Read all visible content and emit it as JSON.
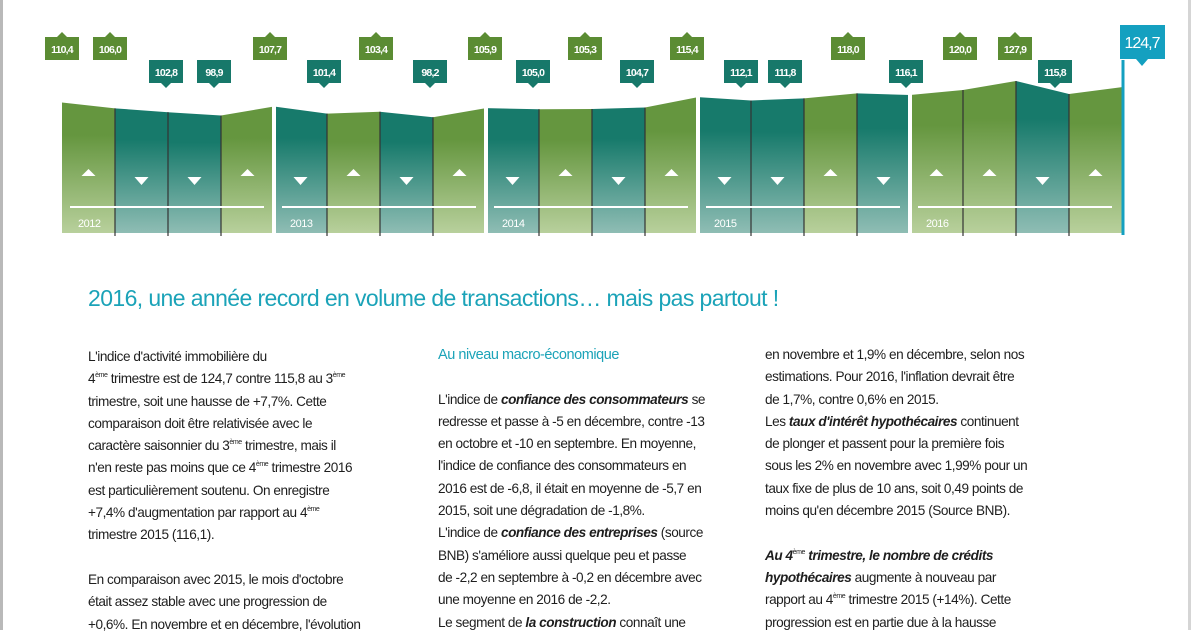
{
  "chart_data": {
    "type": "area",
    "title": "Indice d'activité immobilière",
    "years": [
      "2012",
      "2013",
      "2014",
      "2015",
      "2016"
    ],
    "labels": [
      "110,4",
      "106,0",
      "102,8",
      "98,9",
      "107,7",
      "101,4",
      "103,4",
      "98,2",
      "105,9",
      "105,0",
      "105,3",
      "104,7",
      "115,4",
      "112,1",
      "111,8",
      "118,0",
      "116,1",
      "120,0",
      "127,9",
      "115,8",
      "124,7"
    ],
    "values": [
      110.4,
      106.0,
      102.8,
      98.9,
      107.7,
      101.4,
      103.4,
      98.2,
      105.9,
      105.0,
      105.3,
      104.7,
      115.4,
      112.1,
      111.8,
      118.0,
      116.1,
      120.0,
      127.9,
      115.8,
      124.7
    ],
    "label_rows": [
      "up",
      "up",
      "low",
      "low",
      "up",
      "low",
      "up",
      "low",
      "up",
      "low",
      "up",
      "low",
      "up",
      "low",
      "low",
      "up",
      "low",
      "up",
      "up",
      "low",
      "highlight"
    ],
    "quarter_directions": [
      "up",
      "down",
      "down",
      "up",
      "down",
      "up",
      "down",
      "up",
      "down",
      "up",
      "down",
      "up",
      "down",
      "down",
      "up",
      "down",
      "up",
      "up",
      "down",
      "up"
    ],
    "colors": {
      "up": "#5b8c33",
      "down": "#17786a",
      "highlight": "#14a0c0"
    }
  },
  "article": {
    "title": "2016, une année record en volume de transactions… mais pas partout !",
    "col1": [
      [
        "L'indice d'activité immobilière du"
      ],
      [
        "4",
        {
          "s": "ème"
        },
        " trimestre est de 124,7 contre 115,8 au 3",
        {
          "s": "ème"
        }
      ],
      [
        "trimestre, soit une hausse de +7,7%. Cette"
      ],
      [
        "comparaison doit être relativisée avec le"
      ],
      [
        "caractère saisonnier du 3",
        {
          "s": "ème"
        },
        " trimestre, mais il"
      ],
      [
        "n'en reste pas moins que ce 4",
        {
          "s": "ème"
        },
        " trimestre 2016"
      ],
      [
        "est particulièrement soutenu. On enregistre"
      ],
      [
        "+7,4% d'augmentation par rapport au 4",
        {
          "s": "ème"
        }
      ],
      [
        "trimestre 2015 (116,1)."
      ],
      [],
      [
        "En comparaison avec 2015, le mois d'octobre"
      ],
      [
        "était assez stable avec une progression de"
      ],
      [
        "+0,6%. En novembre et en décembre, l'évolution"
      ]
    ],
    "col2_heading": "Au niveau macro-économique",
    "col2": [
      [],
      [
        "L'indice de ",
        {
          "b": "confiance des consommateurs"
        },
        " se"
      ],
      [
        "redresse et passe à -5 en décembre, contre -13"
      ],
      [
        "en octobre et -10 en septembre. En moyenne,"
      ],
      [
        "l'indice de confiance des consommateurs en"
      ],
      [
        "2016 est de -6,8, il était en moyenne de -5,7 en"
      ],
      [
        "2015, soit une dégradation de -1,8%."
      ],
      [
        "L'indice de ",
        {
          "b": "confiance des entreprises"
        },
        " (source"
      ],
      [
        "BNB) s'améliore aussi quelque peu et passe"
      ],
      [
        "de -2,2 en septembre à -0,2 en décembre avec"
      ],
      [
        "une moyenne en 2016 de -2,2."
      ],
      [
        "Le segment de ",
        {
          "b": "la construction"
        },
        " connaît une"
      ]
    ],
    "col3": [
      [
        "en novembre et 1,9% en décembre, selon nos"
      ],
      [
        "estimations. Pour 2016, l'inflation devrait être"
      ],
      [
        "de 1,7%, contre 0,6% en 2015."
      ],
      [
        "Les ",
        {
          "b": "taux d'intérêt hypothécaires"
        },
        " continuent"
      ],
      [
        "de plonger et passent pour la première fois"
      ],
      [
        "sous les 2% en novembre avec 1,99% pour un"
      ],
      [
        "taux fixe de plus de 10 ans, soit 0,49 points de"
      ],
      [
        "moins qu'en décembre 2015 (Source BNB)."
      ],
      [],
      [
        {
          "b": "Au 4"
        },
        {
          "s": "ème"
        },
        {
          "b": " trimestre, le nombre de crédits"
        }
      ],
      [
        {
          "b": "hypothécaires"
        },
        " augmente à nouveau par"
      ],
      [
        "rapport au 4",
        {
          "s": "ème"
        },
        " trimestre 2015 (+14%). Cette"
      ],
      [
        "progression est en partie due à la hausse"
      ]
    ]
  }
}
